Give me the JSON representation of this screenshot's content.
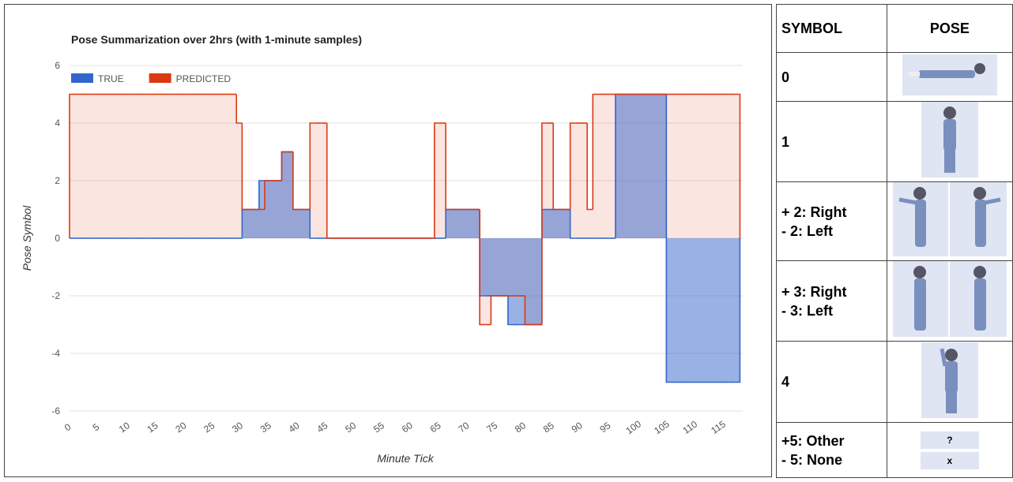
{
  "chart_data": {
    "type": "stepped-area",
    "title": "Pose Summarization over 2hrs (with 1-minute samples)",
    "x_label": "Minute Tick",
    "y_label": "Pose Symbol",
    "xlim": [
      0,
      119
    ],
    "xticks": [
      0,
      5,
      10,
      15,
      20,
      25,
      30,
      35,
      40,
      45,
      50,
      55,
      60,
      65,
      70,
      75,
      80,
      85,
      90,
      95,
      100,
      105,
      110,
      115
    ],
    "ylim": [
      -6,
      6
    ],
    "yticks": [
      -6,
      -4,
      -2,
      0,
      2,
      4,
      6
    ],
    "grid": true,
    "legend": "top-left",
    "x": [
      0,
      1,
      2,
      3,
      4,
      5,
      6,
      7,
      8,
      9,
      10,
      11,
      12,
      13,
      14,
      15,
      16,
      17,
      18,
      19,
      20,
      21,
      22,
      23,
      24,
      25,
      26,
      27,
      28,
      29,
      30,
      31,
      32,
      33,
      34,
      35,
      36,
      37,
      38,
      39,
      40,
      41,
      42,
      43,
      44,
      45,
      46,
      47,
      48,
      49,
      50,
      51,
      52,
      53,
      54,
      55,
      56,
      57,
      58,
      59,
      60,
      61,
      62,
      63,
      64,
      65,
      66,
      67,
      68,
      69,
      70,
      71,
      72,
      73,
      74,
      75,
      76,
      77,
      78,
      79,
      80,
      81,
      82,
      83,
      84,
      85,
      86,
      87,
      88,
      89,
      90,
      91,
      92,
      93,
      94,
      95,
      96,
      97,
      98,
      99,
      100,
      101,
      102,
      103,
      104,
      105,
      106,
      107,
      108,
      109,
      110,
      111,
      112,
      113,
      114,
      115,
      116,
      117,
      118
    ],
    "series": [
      {
        "name": "TRUE",
        "color": "#3366cc",
        "values": [
          0,
          0,
          0,
          0,
          0,
          0,
          0,
          0,
          0,
          0,
          0,
          0,
          0,
          0,
          0,
          0,
          0,
          0,
          0,
          0,
          0,
          0,
          0,
          0,
          0,
          0,
          0,
          0,
          0,
          0,
          0,
          1,
          1,
          1,
          2,
          2,
          2,
          2,
          3,
          3,
          1,
          1,
          1,
          0,
          0,
          0,
          0,
          0,
          0,
          0,
          0,
          0,
          0,
          0,
          0,
          0,
          0,
          0,
          0,
          0,
          0,
          0,
          0,
          0,
          0,
          0,
          0,
          1,
          1,
          1,
          1,
          1,
          1,
          -2,
          -2,
          -2,
          -2,
          -2,
          -3,
          -3,
          -3,
          -3,
          -3,
          -3,
          1,
          1,
          1,
          1,
          1,
          0,
          0,
          0,
          0,
          0,
          0,
          0,
          0,
          5,
          5,
          5,
          5,
          5,
          5,
          5,
          5,
          5,
          -5,
          -5,
          -5,
          -5,
          -5,
          -5,
          -5,
          -5,
          -5,
          -5,
          -5,
          -5,
          -5
        ]
      },
      {
        "name": "PREDICTED",
        "color": "#dc3912",
        "values": [
          5,
          5,
          5,
          5,
          5,
          5,
          5,
          5,
          5,
          5,
          5,
          5,
          5,
          5,
          5,
          5,
          5,
          5,
          5,
          5,
          5,
          5,
          5,
          5,
          5,
          5,
          5,
          5,
          5,
          5,
          4,
          1,
          1,
          1,
          1,
          2,
          2,
          2,
          3,
          3,
          1,
          1,
          1,
          4,
          4,
          4,
          0,
          0,
          0,
          0,
          0,
          0,
          0,
          0,
          0,
          0,
          0,
          0,
          0,
          0,
          0,
          0,
          0,
          0,
          0,
          4,
          4,
          1,
          1,
          1,
          1,
          1,
          1,
          -3,
          -3,
          -2,
          -2,
          -2,
          -2,
          -2,
          -2,
          -3,
          -3,
          -3,
          4,
          4,
          1,
          1,
          1,
          4,
          4,
          4,
          1,
          5,
          5,
          5,
          5,
          5,
          5,
          5,
          5,
          5,
          5,
          5,
          5,
          5,
          5,
          5,
          5,
          5,
          5,
          5,
          5,
          5,
          5,
          5,
          5,
          5,
          5
        ]
      }
    ]
  },
  "table": {
    "headers": [
      "SYMBOL",
      "POSE"
    ],
    "rows": [
      {
        "symbol": [
          "0"
        ]
      },
      {
        "symbol": [
          "1"
        ]
      },
      {
        "symbol": [
          "+ 2: Right",
          "- 2: Left"
        ]
      },
      {
        "symbol": [
          "+ 3: Right",
          "- 3: Left"
        ]
      },
      {
        "symbol": [
          "4"
        ]
      },
      {
        "symbol": [
          "+5: Other",
          "- 5: None"
        ],
        "pose": [
          "?",
          "x"
        ]
      }
    ]
  }
}
